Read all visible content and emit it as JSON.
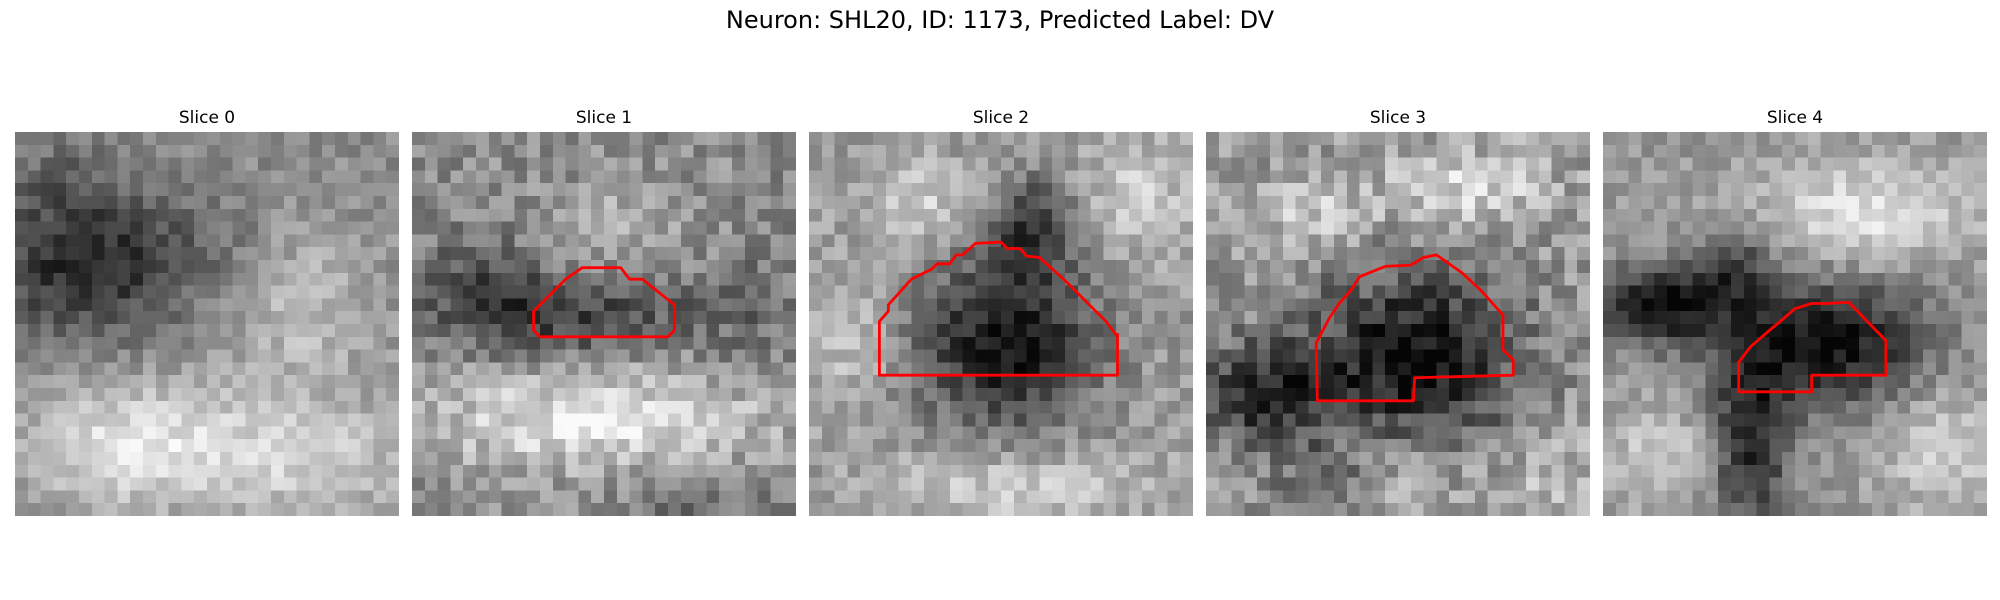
{
  "figure": {
    "title": "Neuron: SHL20, ID: 1173, Predicted Label: DV"
  },
  "panels": [
    {
      "title": "Slice 0"
    },
    {
      "title": "Slice 1"
    },
    {
      "title": "Slice 2"
    },
    {
      "title": "Slice 3"
    },
    {
      "title": "Slice 4"
    }
  ],
  "style": {
    "contour_color": "#ff0000",
    "colormap": "grayscale"
  }
}
